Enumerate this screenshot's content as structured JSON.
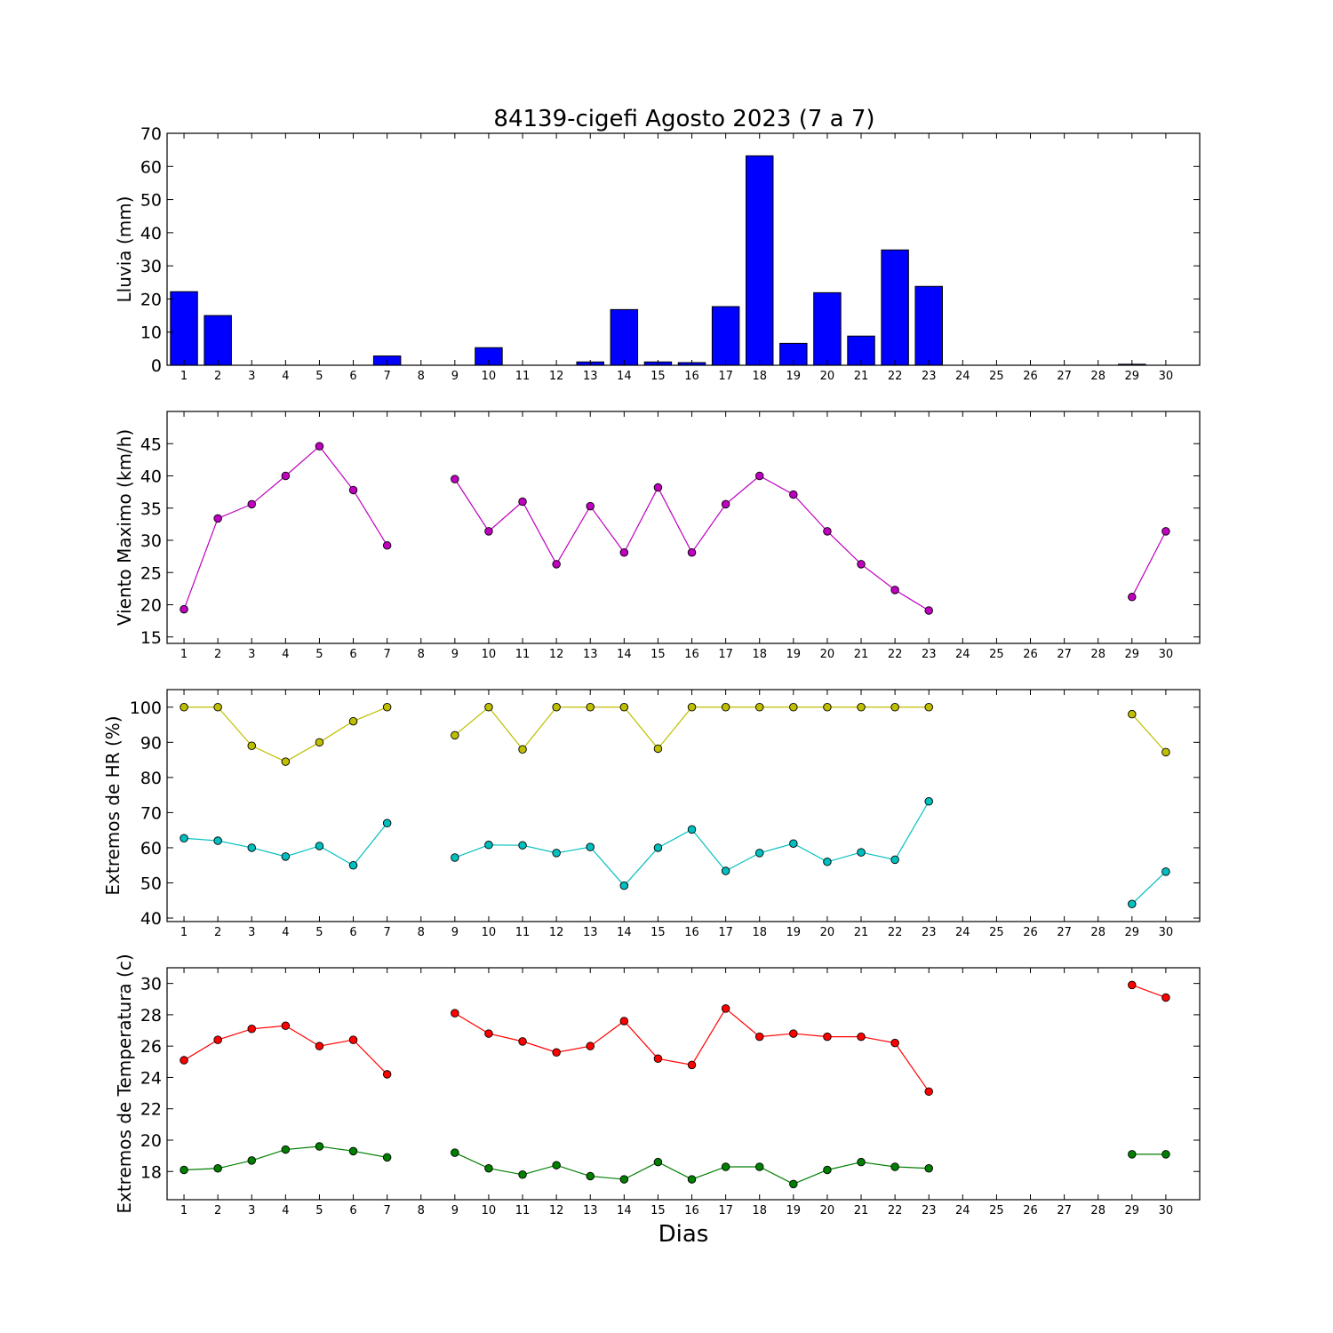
{
  "figure": {
    "title": "84139-cigefi Agosto 2023  (7 a 7)",
    "xlabel": "Dias"
  },
  "chart_data": [
    {
      "type": "bar",
      "ylabel": "Lluvia (mm)",
      "ylim": [
        0,
        70
      ],
      "yticks": [
        0,
        10,
        20,
        30,
        40,
        50,
        60,
        70
      ],
      "xlim": [
        0.5,
        31
      ],
      "categories": [
        1,
        2,
        3,
        4,
        5,
        6,
        7,
        8,
        9,
        10,
        11,
        12,
        13,
        14,
        15,
        16,
        17,
        18,
        19,
        20,
        21,
        22,
        23,
        24,
        25,
        26,
        27,
        28,
        29,
        30
      ],
      "values": [
        22.2,
        15.0,
        0,
        0,
        0,
        0,
        2.8,
        0,
        0,
        5.3,
        0,
        0,
        1.0,
        16.8,
        1.0,
        0.8,
        17.7,
        63.2,
        6.6,
        21.9,
        8.8,
        34.8,
        23.8,
        0,
        0,
        0,
        0,
        0,
        0.3,
        0
      ],
      "bar_color": "#0000ff",
      "grid": false
    },
    {
      "type": "line",
      "ylabel": "Viento Maximo (km/h)",
      "ylim": [
        14,
        50
      ],
      "yticks": [
        15,
        20,
        25,
        30,
        35,
        40,
        45
      ],
      "xlim": [
        0.5,
        31
      ],
      "x": [
        1,
        2,
        3,
        4,
        5,
        6,
        7,
        8,
        9,
        10,
        11,
        12,
        13,
        14,
        15,
        16,
        17,
        18,
        19,
        20,
        21,
        22,
        23,
        24,
        25,
        26,
        27,
        28,
        29,
        30
      ],
      "series": [
        {
          "color": "#bf00bf",
          "values": [
            19.3,
            33.4,
            35.6,
            40.0,
            44.6,
            37.8,
            29.2,
            null,
            39.5,
            31.4,
            36.0,
            26.3,
            35.3,
            28.1,
            38.2,
            28.1,
            35.6,
            40.0,
            37.1,
            31.4,
            26.3,
            22.3,
            19.1,
            null,
            null,
            null,
            null,
            null,
            21.2,
            31.4
          ]
        }
      ],
      "grid": false
    },
    {
      "type": "line",
      "ylabel": "Extremos de HR (%)",
      "ylim": [
        39,
        105
      ],
      "yticks": [
        40,
        50,
        60,
        70,
        80,
        90,
        100
      ],
      "xlim": [
        0.5,
        31
      ],
      "x": [
        1,
        2,
        3,
        4,
        5,
        6,
        7,
        8,
        9,
        10,
        11,
        12,
        13,
        14,
        15,
        16,
        17,
        18,
        19,
        20,
        21,
        22,
        23,
        24,
        25,
        26,
        27,
        28,
        29,
        30
      ],
      "series": [
        {
          "color": "#bfbf00",
          "values": [
            100,
            100,
            89,
            84.5,
            90,
            96,
            100,
            null,
            92,
            100,
            88,
            100,
            100,
            100,
            88.2,
            100,
            100,
            100,
            100,
            100,
            100,
            100,
            100,
            null,
            null,
            null,
            null,
            null,
            98,
            87.2
          ]
        },
        {
          "color": "#00bfbf",
          "values": [
            62.7,
            62.0,
            60.0,
            57.5,
            60.5,
            55.0,
            67.0,
            null,
            57.2,
            60.8,
            60.7,
            58.5,
            60.2,
            49.2,
            60.0,
            65.2,
            53.4,
            58.5,
            61.2,
            56.0,
            58.7,
            56.6,
            73.2,
            null,
            null,
            null,
            null,
            null,
            44.0,
            53.2
          ]
        }
      ],
      "grid": false
    },
    {
      "type": "line",
      "ylabel": "Extremos de Temperatura (c)",
      "ylim": [
        16.2,
        31
      ],
      "yticks": [
        18,
        20,
        22,
        24,
        26,
        28,
        30
      ],
      "xlim": [
        0.5,
        31
      ],
      "x": [
        1,
        2,
        3,
        4,
        5,
        6,
        7,
        8,
        9,
        10,
        11,
        12,
        13,
        14,
        15,
        16,
        17,
        18,
        19,
        20,
        21,
        22,
        23,
        24,
        25,
        26,
        27,
        28,
        29,
        30
      ],
      "series": [
        {
          "color": "#ff0000",
          "values": [
            25.1,
            26.4,
            27.1,
            27.3,
            26.0,
            26.4,
            24.2,
            null,
            28.1,
            26.8,
            26.3,
            25.6,
            26.0,
            27.6,
            25.2,
            24.8,
            28.4,
            26.6,
            26.8,
            26.6,
            26.6,
            26.2,
            23.1,
            null,
            null,
            null,
            null,
            null,
            29.9,
            29.1
          ]
        },
        {
          "color": "#007f00",
          "values": [
            18.1,
            18.2,
            18.7,
            19.4,
            19.6,
            19.3,
            18.9,
            null,
            19.2,
            18.2,
            17.8,
            18.4,
            17.7,
            17.5,
            18.6,
            17.5,
            18.3,
            18.3,
            17.2,
            18.1,
            18.6,
            18.3,
            18.2,
            null,
            null,
            null,
            null,
            null,
            19.1,
            19.1
          ]
        }
      ],
      "grid": false
    }
  ]
}
